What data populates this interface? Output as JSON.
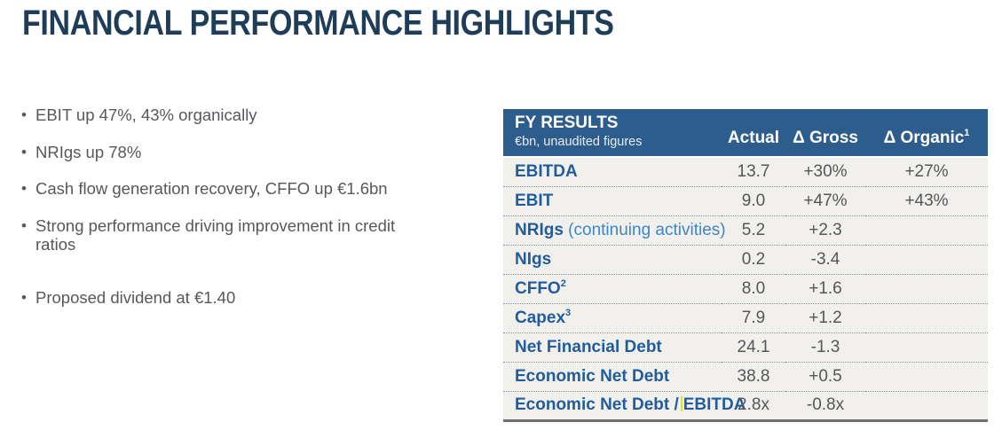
{
  "title": "FINANCIAL PERFORMANCE HIGHLIGHTS",
  "bullets": [
    {
      "text": "EBIT up 47%, 43% organically"
    },
    {
      "text": "NRIgs up 78%"
    },
    {
      "text": "Cash flow generation recovery, CFFO up €1.6bn"
    },
    {
      "text": "Strong performance driving improvement in credit ratios"
    },
    {
      "text": "Proposed dividend at €1.40",
      "gap_before": true
    }
  ],
  "table": {
    "title": "FY RESULTS",
    "subtitle": "€bn, unaudited figures",
    "columns": {
      "actual": "Actual",
      "gross": "Δ Gross",
      "organic": "Δ Organic",
      "organic_sup": "1"
    },
    "rows": [
      {
        "label": "EBITDA",
        "actual": "13.7",
        "gross": "+30%",
        "organic": "+27%"
      },
      {
        "label": "EBIT",
        "actual": "9.0",
        "gross": "+47%",
        "organic": "+43%"
      },
      {
        "label": "NRIgs",
        "suffix": "(continuing activities)",
        "actual": "5.2",
        "gross": "+2.3",
        "organic": ""
      },
      {
        "label": "NIgs",
        "actual": "0.2",
        "gross": "-3.4",
        "organic": ""
      },
      {
        "label": "CFFO",
        "sup": "2",
        "actual": "8.0",
        "gross": "+1.6",
        "organic": ""
      },
      {
        "label": "Capex",
        "sup": "3",
        "actual": "7.9",
        "gross": "+1.2",
        "organic": ""
      },
      {
        "label": "Net Financial Debt",
        "actual": "24.1",
        "gross": "-1.3",
        "organic": ""
      },
      {
        "label": "Economic Net Debt",
        "actual": "38.8",
        "gross": "+0.5",
        "organic": ""
      },
      {
        "label": "Economic Net Debt /",
        "label2": "EBITDA",
        "caret": true,
        "actual": "2.8x",
        "gross": "-0.8x",
        "organic": ""
      }
    ]
  },
  "colors": {
    "title_navy": "#1e3d59",
    "table_header_blue": "#2d5d8c",
    "metric_label_blue": "#215d9c",
    "metric_suffix_blue": "#3c86c8",
    "body_text_gray": "#57585b",
    "table_row_bg": "#f2f0ed",
    "cursor_yellow": "#e6e229"
  }
}
